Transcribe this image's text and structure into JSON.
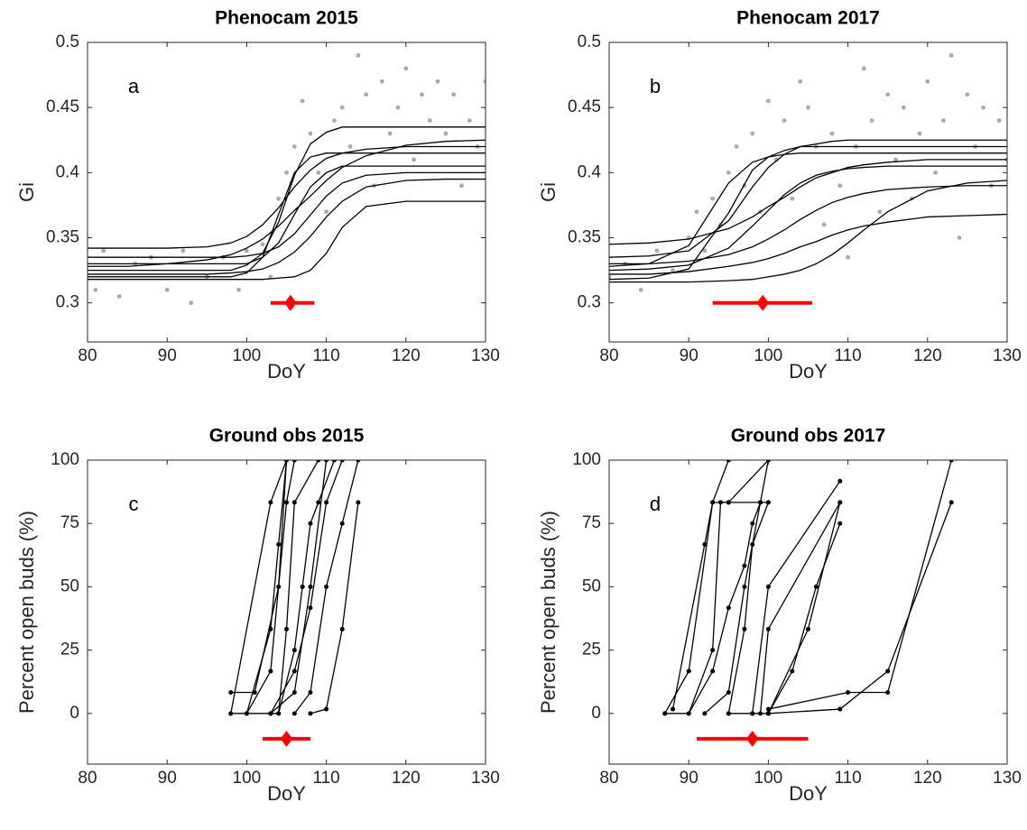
{
  "chart_data": [
    {
      "type": "line",
      "title": "Phenocam 2015",
      "panel_label": "a",
      "xlabel": "DoY",
      "ylabel": "Gi",
      "xlim": [
        80,
        130
      ],
      "xticks": [
        80,
        90,
        100,
        110,
        120,
        130
      ],
      "ylim": [
        0.27,
        0.5
      ],
      "yticks": [
        0.3,
        0.35,
        0.4,
        0.45,
        0.5
      ],
      "x": [
        80,
        85,
        90,
        95,
        98,
        100,
        102,
        104,
        106,
        108,
        110,
        112,
        115,
        120,
        125,
        130
      ],
      "series": [
        {
          "type": "scatter",
          "color": "#aaaaaa",
          "x": [
            81,
            82,
            84,
            86,
            88,
            90,
            92,
            93,
            95,
            97,
            99,
            100,
            102,
            103,
            104,
            105,
            106,
            107,
            108,
            109,
            110,
            111,
            112,
            113,
            114,
            115,
            116,
            117,
            118,
            119,
            120,
            121,
            122,
            123,
            124,
            125,
            126,
            127,
            128,
            129,
            130
          ],
          "values": [
            0.31,
            0.34,
            0.305,
            0.33,
            0.335,
            0.31,
            0.34,
            0.3,
            0.32,
            0.335,
            0.31,
            0.34,
            0.345,
            0.32,
            0.38,
            0.4,
            0.42,
            0.455,
            0.43,
            0.4,
            0.37,
            0.44,
            0.45,
            0.42,
            0.49,
            0.46,
            0.39,
            0.47,
            0.43,
            0.45,
            0.48,
            0.41,
            0.46,
            0.44,
            0.47,
            0.43,
            0.46,
            0.39,
            0.44,
            0.42,
            0.47
          ]
        },
        {
          "type": "line",
          "color": "#000000",
          "values": [
            0.32,
            0.32,
            0.32,
            0.32,
            0.32,
            0.323,
            0.335,
            0.368,
            0.4,
            0.412,
            0.415,
            0.415,
            0.415,
            0.415,
            0.415,
            0.415
          ]
        },
        {
          "type": "line",
          "color": "#000000",
          "values": [
            0.33,
            0.33,
            0.33,
            0.33,
            0.33,
            0.33,
            0.335,
            0.346,
            0.368,
            0.389,
            0.4,
            0.405,
            0.405,
            0.405,
            0.405,
            0.405
          ]
        },
        {
          "type": "line",
          "color": "#000000",
          "values": [
            0.325,
            0.325,
            0.325,
            0.325,
            0.325,
            0.329,
            0.338,
            0.362,
            0.398,
            0.422,
            0.431,
            0.435,
            0.435,
            0.435,
            0.435,
            0.435
          ]
        },
        {
          "type": "line",
          "color": "#000000",
          "values": [
            0.335,
            0.335,
            0.335,
            0.335,
            0.335,
            0.336,
            0.338,
            0.343,
            0.353,
            0.3675,
            0.382,
            0.392,
            0.398,
            0.4,
            0.4,
            0.4
          ]
        },
        {
          "type": "line",
          "color": "#000000",
          "values": [
            0.318,
            0.318,
            0.318,
            0.318,
            0.318,
            0.318,
            0.318,
            0.319,
            0.32,
            0.325,
            0.338,
            0.358,
            0.374,
            0.378,
            0.378,
            0.378
          ]
        },
        {
          "type": "line",
          "color": "#000000",
          "values": [
            0.342,
            0.342,
            0.342,
            0.343,
            0.346,
            0.351,
            0.36,
            0.373,
            0.389,
            0.402,
            0.411,
            0.415,
            0.418,
            0.42,
            0.42,
            0.42
          ]
        },
        {
          "type": "line",
          "color": "#000000",
          "values": [
            0.322,
            0.322,
            0.322,
            0.322,
            0.323,
            0.324,
            0.326,
            0.331,
            0.339,
            0.351,
            0.366,
            0.378,
            0.389,
            0.394,
            0.395,
            0.395
          ]
        },
        {
          "type": "line",
          "color": "#000000",
          "values": [
            0.328,
            0.328,
            0.33,
            0.333,
            0.337,
            0.342,
            0.349,
            0.359,
            0.371,
            0.382,
            0.394,
            0.404,
            0.413,
            0.421,
            0.424,
            0.425
          ]
        }
      ],
      "estimate": {
        "x": 105.5,
        "y": 0.3,
        "xerr": [
          103,
          108.5
        ],
        "color": "#ff0000"
      }
    },
    {
      "type": "line",
      "title": "Phenocam 2017",
      "panel_label": "b",
      "xlabel": "DoY",
      "ylabel": "Gi",
      "xlim": [
        80,
        130
      ],
      "xticks": [
        80,
        90,
        100,
        110,
        120,
        130
      ],
      "ylim": [
        0.27,
        0.5
      ],
      "yticks": [
        0.3,
        0.35,
        0.4,
        0.45,
        0.5
      ],
      "x": [
        80,
        85,
        90,
        95,
        98,
        100,
        102,
        104,
        106,
        108,
        110,
        112,
        115,
        120,
        125,
        130
      ],
      "series": [
        {
          "type": "scatter",
          "color": "#aaaaaa",
          "x": [
            80,
            82,
            84,
            86,
            88,
            90,
            91,
            92,
            93,
            94,
            95,
            96,
            97,
            98,
            99,
            100,
            101,
            102,
            103,
            104,
            105,
            106,
            107,
            108,
            109,
            110,
            111,
            112,
            113,
            114,
            115,
            116,
            117,
            118,
            119,
            120,
            121,
            122,
            123,
            124,
            125,
            126,
            127,
            128,
            129,
            130
          ],
          "values": [
            0.32,
            0.33,
            0.31,
            0.34,
            0.325,
            0.35,
            0.37,
            0.34,
            0.38,
            0.36,
            0.4,
            0.42,
            0.39,
            0.43,
            0.37,
            0.455,
            0.41,
            0.44,
            0.38,
            0.47,
            0.45,
            0.42,
            0.36,
            0.43,
            0.39,
            0.335,
            0.42,
            0.48,
            0.44,
            0.37,
            0.46,
            0.41,
            0.45,
            0.38,
            0.43,
            0.47,
            0.4,
            0.44,
            0.49,
            0.35,
            0.46,
            0.42,
            0.45,
            0.39,
            0.44,
            0.41
          ]
        },
        {
          "type": "line",
          "color": "#000000",
          "values": [
            0.318,
            0.319,
            0.326,
            0.369,
            0.402,
            0.412,
            0.417,
            0.42,
            0.42,
            0.42,
            0.42,
            0.42,
            0.42,
            0.42,
            0.42,
            0.42
          ]
        },
        {
          "type": "line",
          "color": "#000000",
          "values": [
            0.325,
            0.326,
            0.329,
            0.342,
            0.359,
            0.371,
            0.383,
            0.392,
            0.398,
            0.401,
            0.403,
            0.404,
            0.405,
            0.405,
            0.405,
            0.405
          ]
        },
        {
          "type": "line",
          "color": "#000000",
          "values": [
            0.33,
            0.33,
            0.332,
            0.337,
            0.343,
            0.349,
            0.356,
            0.364,
            0.371,
            0.377,
            0.381,
            0.384,
            0.387,
            0.389,
            0.39,
            0.39
          ]
        },
        {
          "type": "line",
          "color": "#000000",
          "values": [
            0.335,
            0.336,
            0.34,
            0.363,
            0.389,
            0.404,
            0.414,
            0.42,
            0.422,
            0.424,
            0.425,
            0.425,
            0.425,
            0.425,
            0.425,
            0.425
          ]
        },
        {
          "type": "line",
          "color": "#000000",
          "values": [
            0.322,
            0.322,
            0.324,
            0.328,
            0.331,
            0.334,
            0.338,
            0.343,
            0.347,
            0.352,
            0.356,
            0.359,
            0.362,
            0.366,
            0.367,
            0.368
          ]
        },
        {
          "type": "line",
          "color": "#000000",
          "values": [
            0.345,
            0.346,
            0.349,
            0.357,
            0.366,
            0.374,
            0.381,
            0.389,
            0.396,
            0.4,
            0.404,
            0.406,
            0.408,
            0.41,
            0.41,
            0.41
          ]
        },
        {
          "type": "line",
          "color": "#000000",
          "values": [
            0.316,
            0.316,
            0.316,
            0.317,
            0.318,
            0.32,
            0.322,
            0.325,
            0.33,
            0.337,
            0.346,
            0.356,
            0.37,
            0.386,
            0.392,
            0.394
          ]
        },
        {
          "type": "line",
          "color": "#000000",
          "values": [
            0.328,
            0.33,
            0.344,
            0.392,
            0.408,
            0.412,
            0.414,
            0.415,
            0.415,
            0.415,
            0.415,
            0.415,
            0.415,
            0.415,
            0.415,
            0.415
          ]
        }
      ],
      "estimate": {
        "x": 99.3,
        "y": 0.3,
        "xerr": [
          93,
          105.5
        ],
        "color": "#ff0000"
      }
    },
    {
      "type": "line",
      "title": "Ground obs 2015",
      "panel_label": "c",
      "xlabel": "DoY",
      "ylabel": "Percent open buds (%)",
      "xlim": [
        80,
        130
      ],
      "xticks": [
        80,
        90,
        100,
        110,
        120,
        130
      ],
      "ylim": [
        -20,
        100
      ],
      "yticks": [
        0,
        25,
        50,
        75,
        100
      ],
      "series": [
        {
          "type": "line",
          "color": "#000000",
          "markers": true,
          "x": [
            98,
            103,
            105
          ],
          "values": [
            0,
            83.3,
            100
          ]
        },
        {
          "type": "line",
          "color": "#000000",
          "markers": true,
          "x": [
            98,
            101,
            104,
            105
          ],
          "values": [
            8.3,
            8.3,
            50,
            100
          ]
        },
        {
          "type": "line",
          "color": "#000000",
          "markers": true,
          "x": [
            98,
            100,
            103,
            105,
            106
          ],
          "values": [
            0,
            0,
            16.7,
            83.3,
            100
          ]
        },
        {
          "type": "line",
          "color": "#000000",
          "markers": true,
          "x": [
            100,
            103,
            104,
            105
          ],
          "values": [
            0,
            33.3,
            66.7,
            100
          ]
        },
        {
          "type": "line",
          "color": "#000000",
          "markers": true,
          "x": [
            103,
            104,
            105,
            106,
            109
          ],
          "values": [
            0,
            0,
            33.3,
            83.3,
            100
          ]
        },
        {
          "type": "line",
          "color": "#000000",
          "markers": true,
          "x": [
            100,
            103,
            106,
            108,
            110
          ],
          "values": [
            0,
            0,
            8.3,
            50,
            100
          ]
        },
        {
          "type": "line",
          "color": "#000000",
          "markers": true,
          "x": [
            103,
            106,
            108,
            110,
            112
          ],
          "values": [
            0,
            16.7,
            41.7,
            83.3,
            100
          ]
        },
        {
          "type": "line",
          "color": "#000000",
          "markers": true,
          "x": [
            104,
            106,
            107,
            108,
            109,
            111
          ],
          "values": [
            0,
            25,
            50,
            75,
            83.3,
            100
          ]
        },
        {
          "type": "line",
          "color": "#000000",
          "markers": true,
          "x": [
            106,
            108,
            110,
            112,
            114
          ],
          "values": [
            0,
            8.3,
            50,
            75,
            100
          ]
        },
        {
          "type": "line",
          "color": "#000000",
          "markers": true,
          "x": [
            108,
            110,
            112,
            114
          ],
          "values": [
            0,
            1.7,
            33.3,
            83.3
          ]
        }
      ],
      "estimate": {
        "x": 105,
        "y": -10,
        "xerr": [
          102,
          108
        ],
        "color": "#ff0000"
      }
    },
    {
      "type": "line",
      "title": "Ground obs 2017",
      "panel_label": "d",
      "xlabel": "DoY",
      "ylabel": "Percent open buds (%)",
      "xlim": [
        80,
        130
      ],
      "xticks": [
        80,
        90,
        100,
        110,
        120,
        130
      ],
      "ylim": [
        -20,
        100
      ],
      "yticks": [
        0,
        25,
        50,
        75,
        100
      ],
      "series": [
        {
          "type": "line",
          "color": "#000000",
          "markers": true,
          "x": [
            87,
            90,
            93,
            95
          ],
          "values": [
            0,
            16.7,
            83.3,
            100
          ]
        },
        {
          "type": "line",
          "color": "#000000",
          "markers": true,
          "x": [
            88,
            92,
            93,
            95,
            100
          ],
          "values": [
            1.7,
            66.7,
            83.3,
            83.3,
            100
          ]
        },
        {
          "type": "line",
          "color": "#000000",
          "markers": true,
          "x": [
            87,
            90,
            93,
            94,
            95,
            100
          ],
          "values": [
            0,
            0,
            25,
            83.3,
            83.3,
            83.3
          ]
        },
        {
          "type": "line",
          "color": "#000000",
          "markers": true,
          "x": [
            90,
            93,
            95,
            97,
            98,
            99,
            100
          ],
          "values": [
            0,
            16.7,
            41.7,
            58.3,
            75,
            83.3,
            100
          ]
        },
        {
          "type": "line",
          "color": "#000000",
          "markers": true,
          "x": [
            92,
            95,
            97,
            99
          ],
          "values": [
            0,
            8.3,
            50,
            83.3
          ]
        },
        {
          "type": "line",
          "color": "#000000",
          "markers": true,
          "x": [
            95,
            97,
            98,
            100
          ],
          "values": [
            0,
            33.3,
            66.7,
            83.3
          ]
        },
        {
          "type": "line",
          "color": "#000000",
          "markers": true,
          "x": [
            95,
            98,
            100,
            109
          ],
          "values": [
            0,
            0,
            50,
            91.7
          ]
        },
        {
          "type": "line",
          "color": "#000000",
          "markers": true,
          "x": [
            98,
            100,
            105,
            109
          ],
          "values": [
            0,
            0,
            33.3,
            83.3
          ]
        },
        {
          "type": "line",
          "color": "#000000",
          "markers": true,
          "x": [
            100,
            103,
            106,
            109
          ],
          "values": [
            0,
            16.7,
            50,
            75
          ]
        },
        {
          "type": "line",
          "color": "#000000",
          "markers": true,
          "x": [
            99,
            100,
            109
          ],
          "values": [
            0,
            33.3,
            83.3
          ]
        },
        {
          "type": "line",
          "color": "#000000",
          "markers": true,
          "x": [
            100,
            110,
            115,
            123
          ],
          "values": [
            1.7,
            8.3,
            8.3,
            100
          ]
        },
        {
          "type": "line",
          "color": "#000000",
          "markers": true,
          "x": [
            100,
            109,
            115,
            123
          ],
          "values": [
            0,
            1.7,
            16.7,
            83.3
          ]
        }
      ],
      "estimate": {
        "x": 98,
        "y": -10,
        "xerr": [
          91,
          105
        ],
        "color": "#ff0000"
      }
    }
  ]
}
